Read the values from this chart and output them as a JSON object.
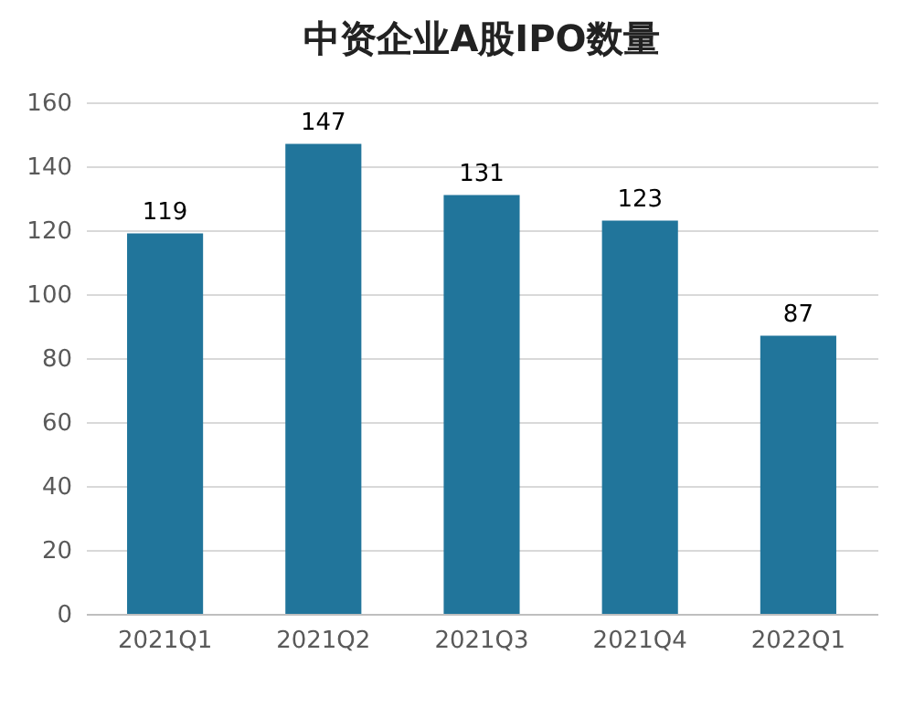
{
  "chart_data": {
    "type": "bar",
    "title": "中资企业A股IPO数量",
    "categories": [
      "2021Q1",
      "2021Q2",
      "2021Q3",
      "2021Q4",
      "2022Q1"
    ],
    "values": [
      119,
      147,
      131,
      123,
      87
    ],
    "color": "#21759b",
    "ylim": [
      0,
      160
    ],
    "yticks": [
      0,
      20,
      40,
      60,
      80,
      100,
      120,
      140,
      160
    ],
    "grid": "y",
    "data_labels": true
  }
}
